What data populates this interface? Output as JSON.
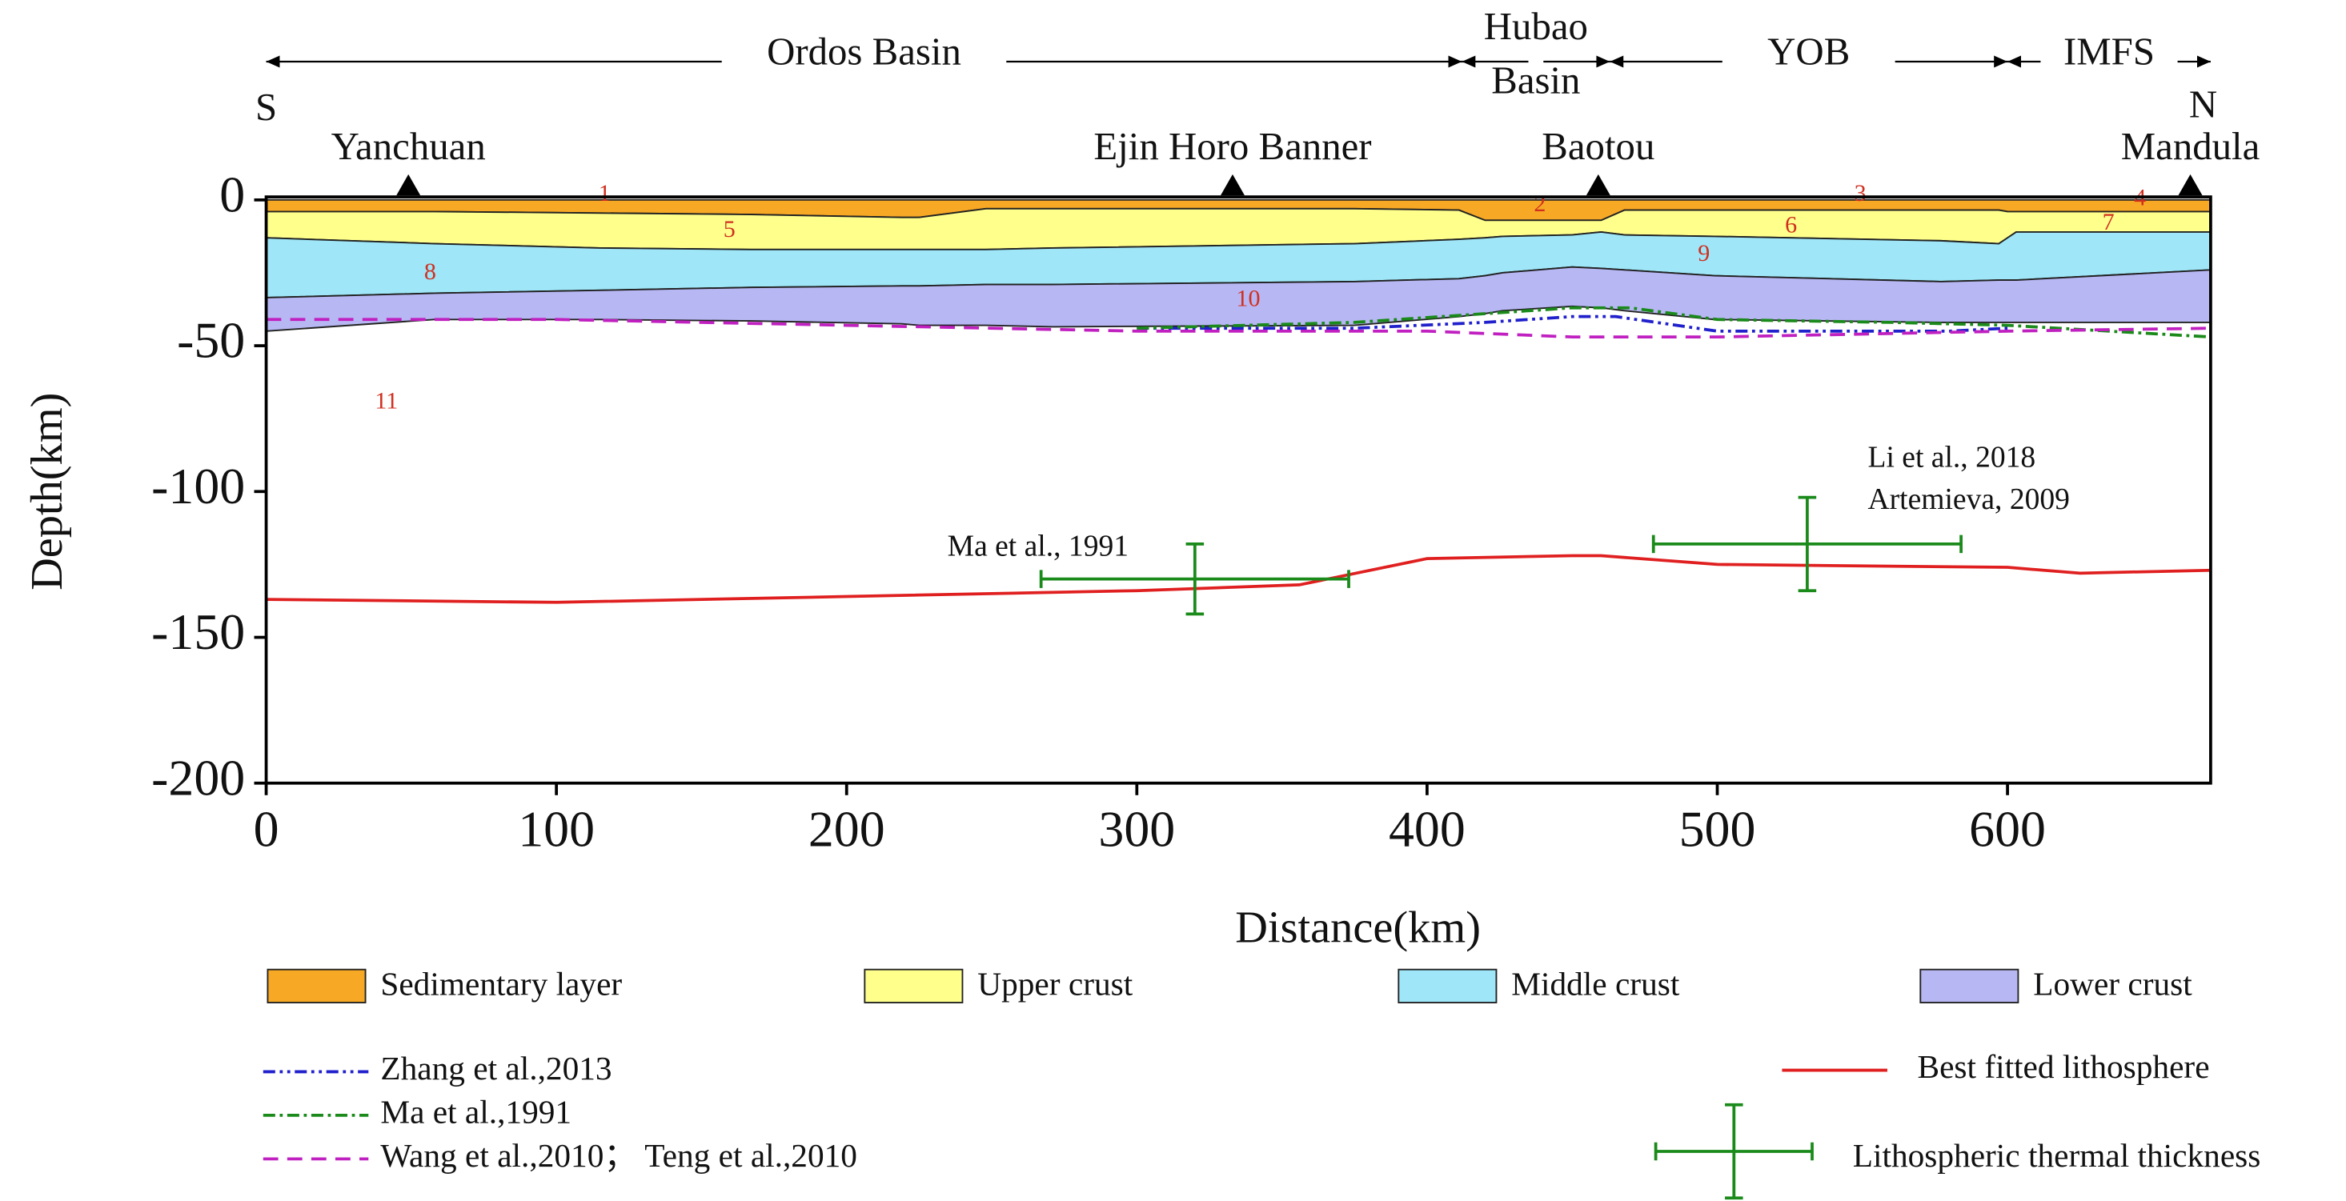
{
  "chart_data": {
    "type": "section",
    "x_label": "Distance(km)",
    "y_label": "Depth(km)",
    "xlim": [
      0,
      670
    ],
    "ylim": [
      -200,
      0
    ],
    "xticks": [
      0,
      100,
      200,
      300,
      400,
      500,
      600
    ],
    "yticks": [
      0,
      -50,
      -100,
      -150,
      -200
    ],
    "ends": [
      "S",
      "N"
    ],
    "regions": [
      {
        "name": [
          "Ordos Basin"
        ],
        "x": [
          0,
          412
        ]
      },
      {
        "name": [
          "Hubao",
          "Basin"
        ],
        "x": [
          412,
          463
        ]
      },
      {
        "name": [
          "YOB"
        ],
        "x": [
          463,
          600
        ]
      },
      {
        "name": [
          "IMFS"
        ],
        "x": [
          600,
          670
        ]
      }
    ],
    "stations": [
      {
        "name": "Yanchuan",
        "x": 49
      },
      {
        "name": "Ejin Horo Banner",
        "x": 333
      },
      {
        "name": "Baotou",
        "x": 459
      },
      {
        "name": "Mandula",
        "x": 663
      }
    ],
    "x": [
      0,
      58,
      115,
      167,
      219,
      225,
      248,
      271,
      375,
      411,
      420,
      426,
      450,
      460,
      468,
      499,
      577,
      597,
      600,
      603,
      670
    ],
    "layers": [
      {
        "name": "Sedimentary layer",
        "color": "#f7a824",
        "top": [
          0,
          0,
          0,
          0,
          0,
          0,
          0,
          0,
          0,
          0,
          0,
          0,
          0,
          0,
          0,
          0,
          0,
          0,
          0,
          0,
          0
        ],
        "bottom": [
          -4,
          -4,
          -4.5,
          -5,
          -6,
          -6,
          -3,
          -3,
          -3,
          -3.5,
          -7,
          -7,
          -7,
          -7,
          -3.5,
          -3.5,
          -3.5,
          -3.5,
          -4,
          -4,
          -4
        ]
      },
      {
        "name": "Upper crust",
        "color": "#ffff8c",
        "top": [
          -4,
          -4,
          -4.5,
          -5,
          -6,
          -6,
          -3,
          -3,
          -3,
          -3.5,
          -7,
          -7,
          -7,
          -7,
          -3.5,
          -3.5,
          -3.5,
          -3.5,
          -4,
          -4,
          -4
        ],
        "bottom": [
          -13,
          -15,
          -16.5,
          -17,
          -17,
          -17,
          -17,
          -16.5,
          -15,
          -13.5,
          -13,
          -12.5,
          -12,
          -11,
          -12,
          -12.5,
          -14,
          -15,
          -13,
          -11,
          -11
        ]
      },
      {
        "name": "Middle crust",
        "color": "#9ee6f8",
        "top": [
          -13,
          -15,
          -16.5,
          -17,
          -17,
          -17,
          -17,
          -16.5,
          -15,
          -13.5,
          -13,
          -12.5,
          -12,
          -11,
          -12,
          -12.5,
          -14,
          -15,
          -13,
          -11,
          -11
        ],
        "bottom": [
          -33.5,
          -32,
          -31,
          -30,
          -29.5,
          -29.5,
          -29,
          -29,
          -28,
          -27,
          -26,
          -25,
          -23,
          -23.5,
          -24,
          -26,
          -28,
          -27.5,
          -27.5,
          -27.5,
          -24
        ]
      },
      {
        "name": "Lower crust",
        "color": "#b7b7f4",
        "top": [
          -33.5,
          -32,
          -31,
          -30,
          -29.5,
          -29.5,
          -29,
          -29,
          -28,
          -27,
          -26,
          -25,
          -23,
          -23.5,
          -24,
          -26,
          -28,
          -27.5,
          -27.5,
          -27.5,
          -24
        ],
        "bottom": [
          -45,
          -41,
          -41,
          -41.5,
          -42.5,
          -43,
          -43,
          -43.5,
          -43,
          -40,
          -39,
          -38,
          -36.5,
          -37,
          -38,
          -41,
          -42,
          -42,
          -42,
          -42,
          -42
        ]
      }
    ],
    "region_labels": [
      "1",
      "2",
      "3",
      "4",
      "5",
      "6",
      "7",
      "8",
      "9",
      "10",
      "11"
    ],
    "lines": [
      {
        "name": "Zhang et al.,2013",
        "color": "#2020cc",
        "dash": "8 3 2 3 2 3",
        "x": [
          300,
          375,
          420,
          450,
          465,
          500,
          580,
          600
        ],
        "values": [
          -44,
          -44,
          -42,
          -40,
          -40,
          -45,
          -45,
          -44
        ]
      },
      {
        "name": "Ma et al.,1991",
        "color": "#1a8a1a",
        "dash": "8 3 2 3",
        "x": [
          300,
          375,
          420,
          450,
          470,
          500,
          560,
          600,
          670
        ],
        "values": [
          -44,
          -42,
          -39,
          -37,
          -37,
          -41,
          -42,
          -43,
          -47
        ]
      },
      {
        "name": "Wang et al.,2010； Teng et al.,2010",
        "color": "#c020c0",
        "dash": "10 6",
        "x": [
          0,
          100,
          200,
          300,
          400,
          450,
          500,
          600,
          670
        ],
        "values": [
          -41,
          -41,
          -43,
          -45,
          -45,
          -47,
          -47,
          -45,
          -44
        ]
      },
      {
        "name": "Best fitted lithosphere",
        "color": "#e02020",
        "dash": "none",
        "x": [
          0,
          100,
          200,
          300,
          356,
          400,
          450,
          460,
          500,
          600,
          625,
          670
        ],
        "values": [
          -137,
          -138,
          -136,
          -134,
          -132,
          -123,
          -122,
          -122,
          -125,
          -126,
          -128,
          -127
        ]
      }
    ],
    "errors_name": "Lithospheric thermal thickness",
    "errors_color": "#1a8a1a",
    "errors": [
      {
        "x": 320,
        "y": -130,
        "xerr": 53,
        "yerr": 12
      },
      {
        "x": 531,
        "y": -118,
        "xerr": 53,
        "yerr": 16
      }
    ],
    "annotations": [
      "Ma et al., 1991",
      "Li et al., 2018",
      "Artemieva,  2009"
    ]
  }
}
